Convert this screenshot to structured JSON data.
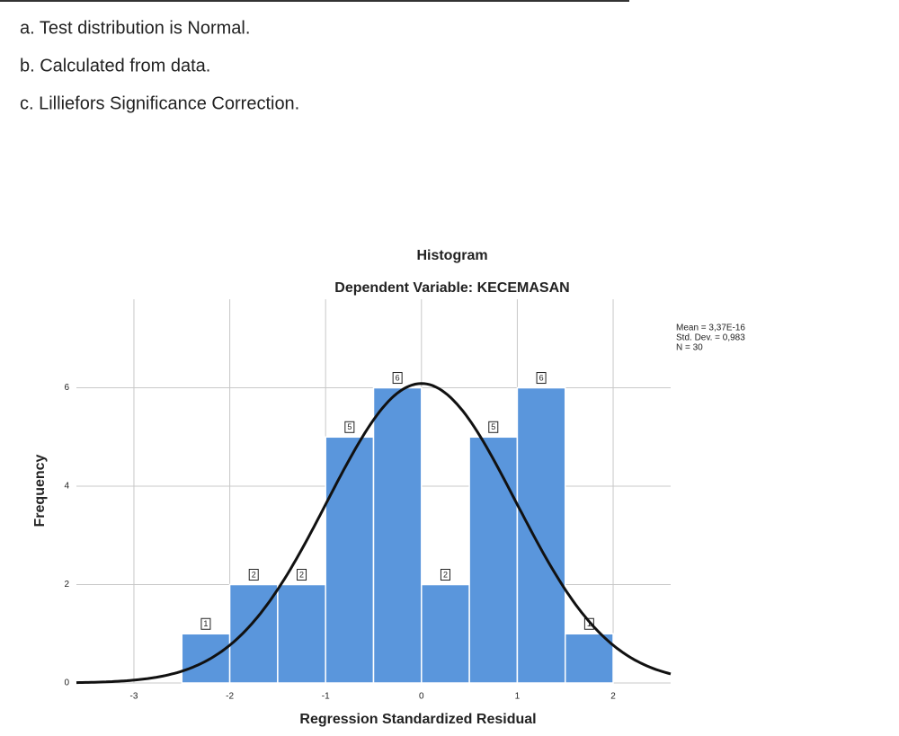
{
  "notes": [
    "a. Test distribution is Normal.",
    "b. Calculated from data.",
    "c. Lilliefors Significance Correction."
  ],
  "chart_data": {
    "type": "histogram",
    "title": "Histogram",
    "subtitle": "Dependent Variable: KECEMASAN",
    "x_label": "Regression Standardized Residual",
    "y_label": "Frequency",
    "bins": [
      -2.5,
      -2,
      -1.5,
      -1,
      -0.5,
      0,
      0.5,
      1,
      1.5,
      2
    ],
    "values": [
      1,
      2,
      2,
      5,
      6,
      2,
      5,
      6,
      1
    ],
    "color": "#5a96dc",
    "xlim": [
      -3.6,
      2.6
    ],
    "xticks": [
      -3,
      -2,
      -1,
      0,
      1,
      2
    ],
    "ylim": [
      0,
      7.8
    ],
    "yticks": [
      0,
      2,
      4,
      6
    ],
    "grid": true,
    "stats": [
      {
        "value": 3.37e-16,
        "label": "Mean = 3,37E-16"
      },
      {
        "value": 0.983,
        "label": "Std. Dev. = 0,983"
      },
      {
        "value": 30,
        "label": "N = 30"
      }
    ]
  }
}
